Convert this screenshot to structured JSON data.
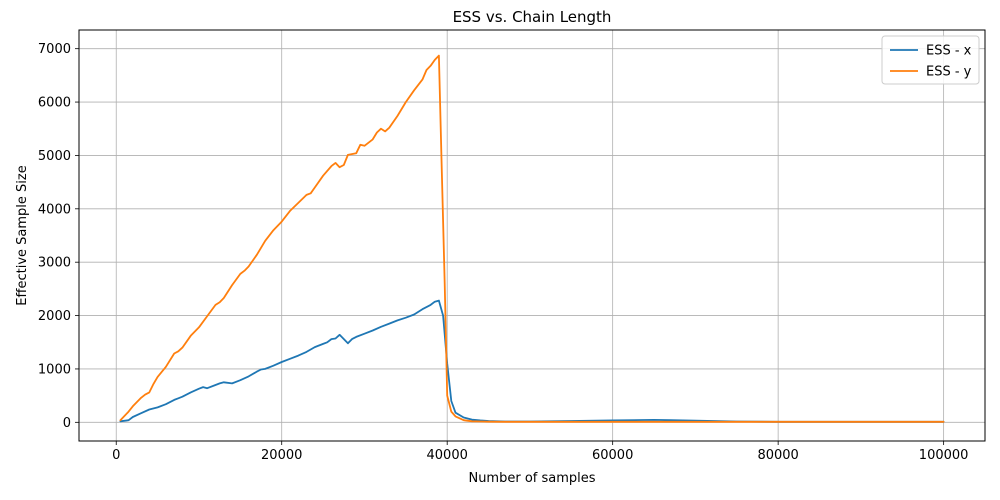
{
  "chart_data": {
    "type": "line",
    "title": "ESS vs. Chain Length",
    "xlabel": "Number of samples",
    "ylabel": "Effective Sample Size",
    "xlim": [
      -4500,
      105000
    ],
    "ylim": [
      -350,
      7350
    ],
    "xticks": [
      0,
      20000,
      40000,
      60000,
      80000,
      100000
    ],
    "yticks": [
      0,
      1000,
      2000,
      3000,
      4000,
      5000,
      6000,
      7000
    ],
    "grid": true,
    "legend_position": "top-right",
    "series": [
      {
        "name": "ESS - x",
        "color": "#1f77b4",
        "x": [
          500,
          1500,
          2000,
          3000,
          4000,
          5000,
          6000,
          7000,
          7500,
          8000,
          9000,
          10000,
          10500,
          11000,
          12000,
          12500,
          13000,
          14000,
          15000,
          16000,
          17000,
          17500,
          18000,
          19000,
          20000,
          21000,
          22000,
          23000,
          24000,
          25000,
          25500,
          26000,
          26500,
          27000,
          28000,
          28500,
          29000,
          30000,
          31000,
          32000,
          33000,
          34000,
          35000,
          36000,
          37000,
          38000,
          38500,
          39000,
          39500,
          40000,
          40500,
          41000,
          42000,
          43000,
          44000,
          45000,
          47000,
          50000,
          55000,
          60000,
          65000,
          67000,
          70000,
          75000,
          80000,
          85000,
          90000,
          95000,
          100000
        ],
        "y": [
          20,
          40,
          100,
          170,
          240,
          280,
          340,
          420,
          450,
          480,
          560,
          630,
          660,
          640,
          700,
          730,
          750,
          730,
          790,
          860,
          950,
          990,
          1000,
          1060,
          1130,
          1190,
          1250,
          1320,
          1410,
          1470,
          1500,
          1560,
          1570,
          1640,
          1480,
          1560,
          1600,
          1660,
          1720,
          1790,
          1850,
          1910,
          1960,
          2020,
          2120,
          2200,
          2260,
          2280,
          2000,
          1100,
          400,
          180,
          90,
          50,
          35,
          25,
          15,
          15,
          25,
          35,
          45,
          40,
          30,
          15,
          10,
          10,
          10,
          10,
          10
        ]
      },
      {
        "name": "ESS - y",
        "color": "#ff7f0e",
        "x": [
          500,
          1500,
          2000,
          3000,
          3500,
          4000,
          4500,
          5000,
          6000,
          7000,
          7500,
          8000,
          9000,
          10000,
          11000,
          12000,
          12500,
          13000,
          14000,
          15000,
          15500,
          16000,
          17000,
          18000,
          19000,
          20000,
          21000,
          22000,
          23000,
          23500,
          24000,
          25000,
          26000,
          26500,
          27000,
          27500,
          28000,
          29000,
          29500,
          30000,
          31000,
          31500,
          32000,
          32500,
          33000,
          34000,
          35000,
          36000,
          37000,
          37500,
          38000,
          38500,
          39000,
          39300,
          39700,
          40000,
          40500,
          41000,
          42000,
          43000,
          44000,
          45000,
          47000,
          50000,
          60000,
          70000,
          80000,
          90000,
          100000
        ],
        "y": [
          40,
          200,
          300,
          460,
          520,
          560,
          720,
          850,
          1040,
          1290,
          1330,
          1400,
          1620,
          1780,
          1990,
          2200,
          2250,
          2330,
          2570,
          2780,
          2840,
          2920,
          3140,
          3400,
          3600,
          3760,
          3960,
          4110,
          4260,
          4290,
          4400,
          4620,
          4800,
          4860,
          4780,
          4820,
          5010,
          5040,
          5200,
          5180,
          5300,
          5430,
          5500,
          5450,
          5520,
          5740,
          6000,
          6220,
          6420,
          6600,
          6680,
          6790,
          6870,
          5000,
          2600,
          500,
          200,
          110,
          40,
          20,
          15,
          12,
          10,
          10,
          10,
          10,
          10,
          10,
          10
        ]
      }
    ]
  }
}
